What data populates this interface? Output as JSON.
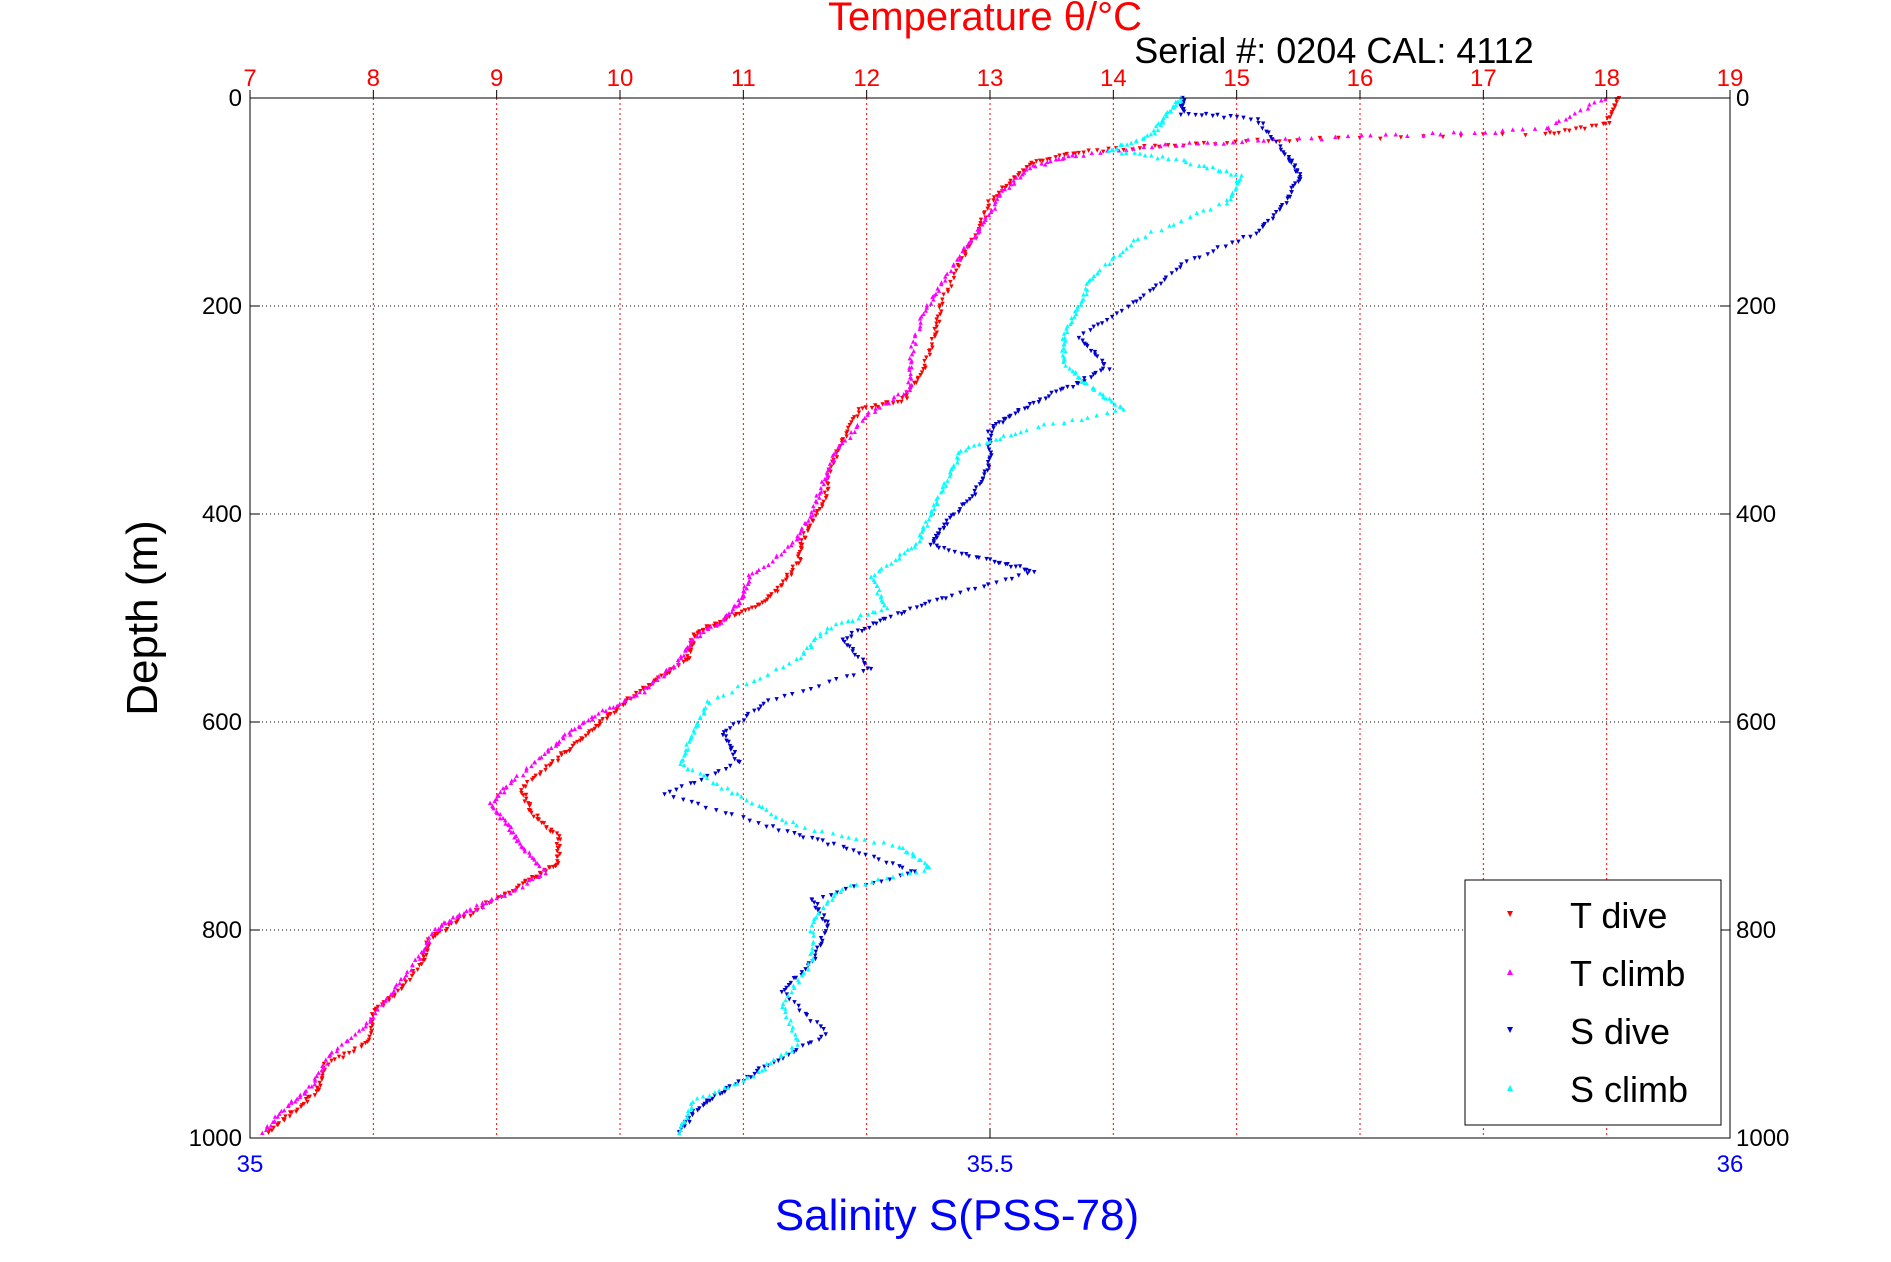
{
  "chart_data": {
    "type": "scatter",
    "title": "Temperature θ/°C",
    "subtitle": "Serial #: 0204  CAL: 4112",
    "ylabel": "Depth (m)",
    "xlabel_bottom": "Salinity S(PSS-78)",
    "ylim": [
      0,
      1000
    ],
    "y_reversed": true,
    "y_ticks": [
      "0",
      "200",
      "400",
      "600",
      "800",
      "1000"
    ],
    "x_top": {
      "label": "Temperature θ/°C",
      "lim": [
        7,
        19
      ],
      "ticks": [
        "7",
        "8",
        "9",
        "10",
        "11",
        "12",
        "13",
        "14",
        "15",
        "16",
        "17",
        "18",
        "19"
      ]
    },
    "x_bottom": {
      "label": "Salinity S(PSS-78)",
      "lim": [
        35,
        36
      ],
      "ticks": [
        "35",
        "35.5",
        "36"
      ]
    },
    "grid": true,
    "legend_position": "bottom-right",
    "colors": {
      "temp_axis": "#ff0000",
      "sal_axis": "#0000ff",
      "t_dive": "#ff0000",
      "t_climb": "#ff00ff",
      "s_dive": "#0000cc",
      "s_climb": "#00ffff"
    },
    "series": [
      {
        "name": "T dive",
        "axis": "temperature",
        "marker": "triangle-down",
        "color": "#ff0000",
        "points": [
          [
            18.1,
            0
          ],
          [
            18.0,
            25
          ],
          [
            17.5,
            35
          ],
          [
            15.5,
            40
          ],
          [
            14.5,
            45
          ],
          [
            13.8,
            52
          ],
          [
            13.4,
            60
          ],
          [
            13.2,
            75
          ],
          [
            13.0,
            100
          ],
          [
            12.9,
            130
          ],
          [
            12.75,
            160
          ],
          [
            12.6,
            200
          ],
          [
            12.55,
            230
          ],
          [
            12.45,
            265
          ],
          [
            12.3,
            290
          ],
          [
            11.95,
            300
          ],
          [
            11.8,
            330
          ],
          [
            11.7,
            360
          ],
          [
            11.65,
            390
          ],
          [
            11.5,
            420
          ],
          [
            11.45,
            445
          ],
          [
            11.3,
            470
          ],
          [
            11.1,
            490
          ],
          [
            10.8,
            505
          ],
          [
            10.6,
            515
          ],
          [
            10.55,
            540
          ],
          [
            10.3,
            560
          ],
          [
            10.05,
            580
          ],
          [
            9.85,
            600
          ],
          [
            9.65,
            620
          ],
          [
            9.45,
            640
          ],
          [
            9.2,
            665
          ],
          [
            9.3,
            690
          ],
          [
            9.5,
            710
          ],
          [
            9.5,
            735
          ],
          [
            9.3,
            750
          ],
          [
            9.0,
            770
          ],
          [
            8.7,
            790
          ],
          [
            8.45,
            810
          ],
          [
            8.4,
            830
          ],
          [
            8.2,
            860
          ],
          [
            8.0,
            880
          ],
          [
            7.95,
            910
          ],
          [
            7.6,
            930
          ],
          [
            7.55,
            955
          ],
          [
            7.35,
            975
          ],
          [
            7.15,
            995
          ]
        ]
      },
      {
        "name": "T climb",
        "axis": "temperature",
        "marker": "triangle-up",
        "color": "#ff00ff",
        "points": [
          [
            18.0,
            0
          ],
          [
            17.5,
            30
          ],
          [
            16.5,
            35
          ],
          [
            15.3,
            40
          ],
          [
            14.5,
            45
          ],
          [
            13.7,
            55
          ],
          [
            13.35,
            65
          ],
          [
            13.1,
            90
          ],
          [
            12.95,
            120
          ],
          [
            12.8,
            145
          ],
          [
            12.6,
            180
          ],
          [
            12.45,
            210
          ],
          [
            12.35,
            250
          ],
          [
            12.35,
            280
          ],
          [
            12.0,
            305
          ],
          [
            11.75,
            340
          ],
          [
            11.65,
            370
          ],
          [
            11.55,
            400
          ],
          [
            11.4,
            430
          ],
          [
            11.05,
            460
          ],
          [
            11.0,
            480
          ],
          [
            10.85,
            500
          ],
          [
            10.6,
            520
          ],
          [
            10.45,
            545
          ],
          [
            10.2,
            570
          ],
          [
            9.85,
            590
          ],
          [
            9.6,
            610
          ],
          [
            9.4,
            630
          ],
          [
            9.1,
            660
          ],
          [
            8.95,
            680
          ],
          [
            9.1,
            700
          ],
          [
            9.2,
            720
          ],
          [
            9.4,
            745
          ],
          [
            9.0,
            770
          ],
          [
            8.7,
            785
          ],
          [
            8.5,
            800
          ],
          [
            8.35,
            830
          ],
          [
            8.15,
            860
          ],
          [
            7.95,
            890
          ],
          [
            7.65,
            920
          ],
          [
            7.5,
            950
          ],
          [
            7.3,
            970
          ],
          [
            7.1,
            995
          ]
        ]
      },
      {
        "name": "S dive",
        "axis": "salinity",
        "marker": "triangle-down",
        "color": "#0000cc",
        "points": [
          [
            35.63,
            0
          ],
          [
            35.63,
            15
          ],
          [
            35.68,
            20
          ],
          [
            35.7,
            55
          ],
          [
            35.71,
            75
          ],
          [
            35.7,
            100
          ],
          [
            35.68,
            130
          ],
          [
            35.63,
            160
          ],
          [
            35.6,
            195
          ],
          [
            35.56,
            230
          ],
          [
            35.58,
            260
          ],
          [
            35.55,
            280
          ],
          [
            35.52,
            300
          ],
          [
            35.5,
            320
          ],
          [
            35.5,
            350
          ],
          [
            35.49,
            380
          ],
          [
            35.47,
            410
          ],
          [
            35.46,
            430
          ],
          [
            35.5,
            445
          ],
          [
            35.53,
            455
          ],
          [
            35.47,
            480
          ],
          [
            35.43,
            500
          ],
          [
            35.4,
            520
          ],
          [
            35.42,
            550
          ],
          [
            35.35,
            580
          ],
          [
            35.32,
            610
          ],
          [
            35.33,
            640
          ],
          [
            35.28,
            670
          ],
          [
            35.35,
            700
          ],
          [
            35.4,
            720
          ],
          [
            35.45,
            745
          ],
          [
            35.38,
            770
          ],
          [
            35.39,
            795
          ],
          [
            35.38,
            830
          ],
          [
            35.36,
            860
          ],
          [
            35.39,
            900
          ],
          [
            35.35,
            930
          ],
          [
            35.32,
            955
          ],
          [
            35.3,
            975
          ],
          [
            35.29,
            995
          ]
        ]
      },
      {
        "name": "S climb",
        "axis": "salinity",
        "marker": "triangle-up",
        "color": "#00ffff",
        "points": [
          [
            35.63,
            0
          ],
          [
            35.62,
            15
          ],
          [
            35.61,
            35
          ],
          [
            35.58,
            50
          ],
          [
            35.63,
            60
          ],
          [
            35.67,
            75
          ],
          [
            35.66,
            100
          ],
          [
            35.6,
            135
          ],
          [
            35.57,
            170
          ],
          [
            35.56,
            200
          ],
          [
            35.55,
            230
          ],
          [
            35.55,
            255
          ],
          [
            35.57,
            280
          ],
          [
            35.59,
            300
          ],
          [
            35.52,
            320
          ],
          [
            35.48,
            340
          ],
          [
            35.47,
            370
          ],
          [
            35.46,
            400
          ],
          [
            35.45,
            430
          ],
          [
            35.42,
            460
          ],
          [
            35.43,
            490
          ],
          [
            35.39,
            510
          ],
          [
            35.37,
            540
          ],
          [
            35.31,
            580
          ],
          [
            35.3,
            610
          ],
          [
            35.29,
            640
          ],
          [
            35.33,
            670
          ],
          [
            35.37,
            700
          ],
          [
            35.44,
            720
          ],
          [
            35.46,
            740
          ],
          [
            35.4,
            760
          ],
          [
            35.38,
            790
          ],
          [
            35.38,
            830
          ],
          [
            35.36,
            870
          ],
          [
            35.37,
            910
          ],
          [
            35.34,
            940
          ],
          [
            35.3,
            965
          ],
          [
            35.29,
            995
          ]
        ]
      }
    ]
  }
}
